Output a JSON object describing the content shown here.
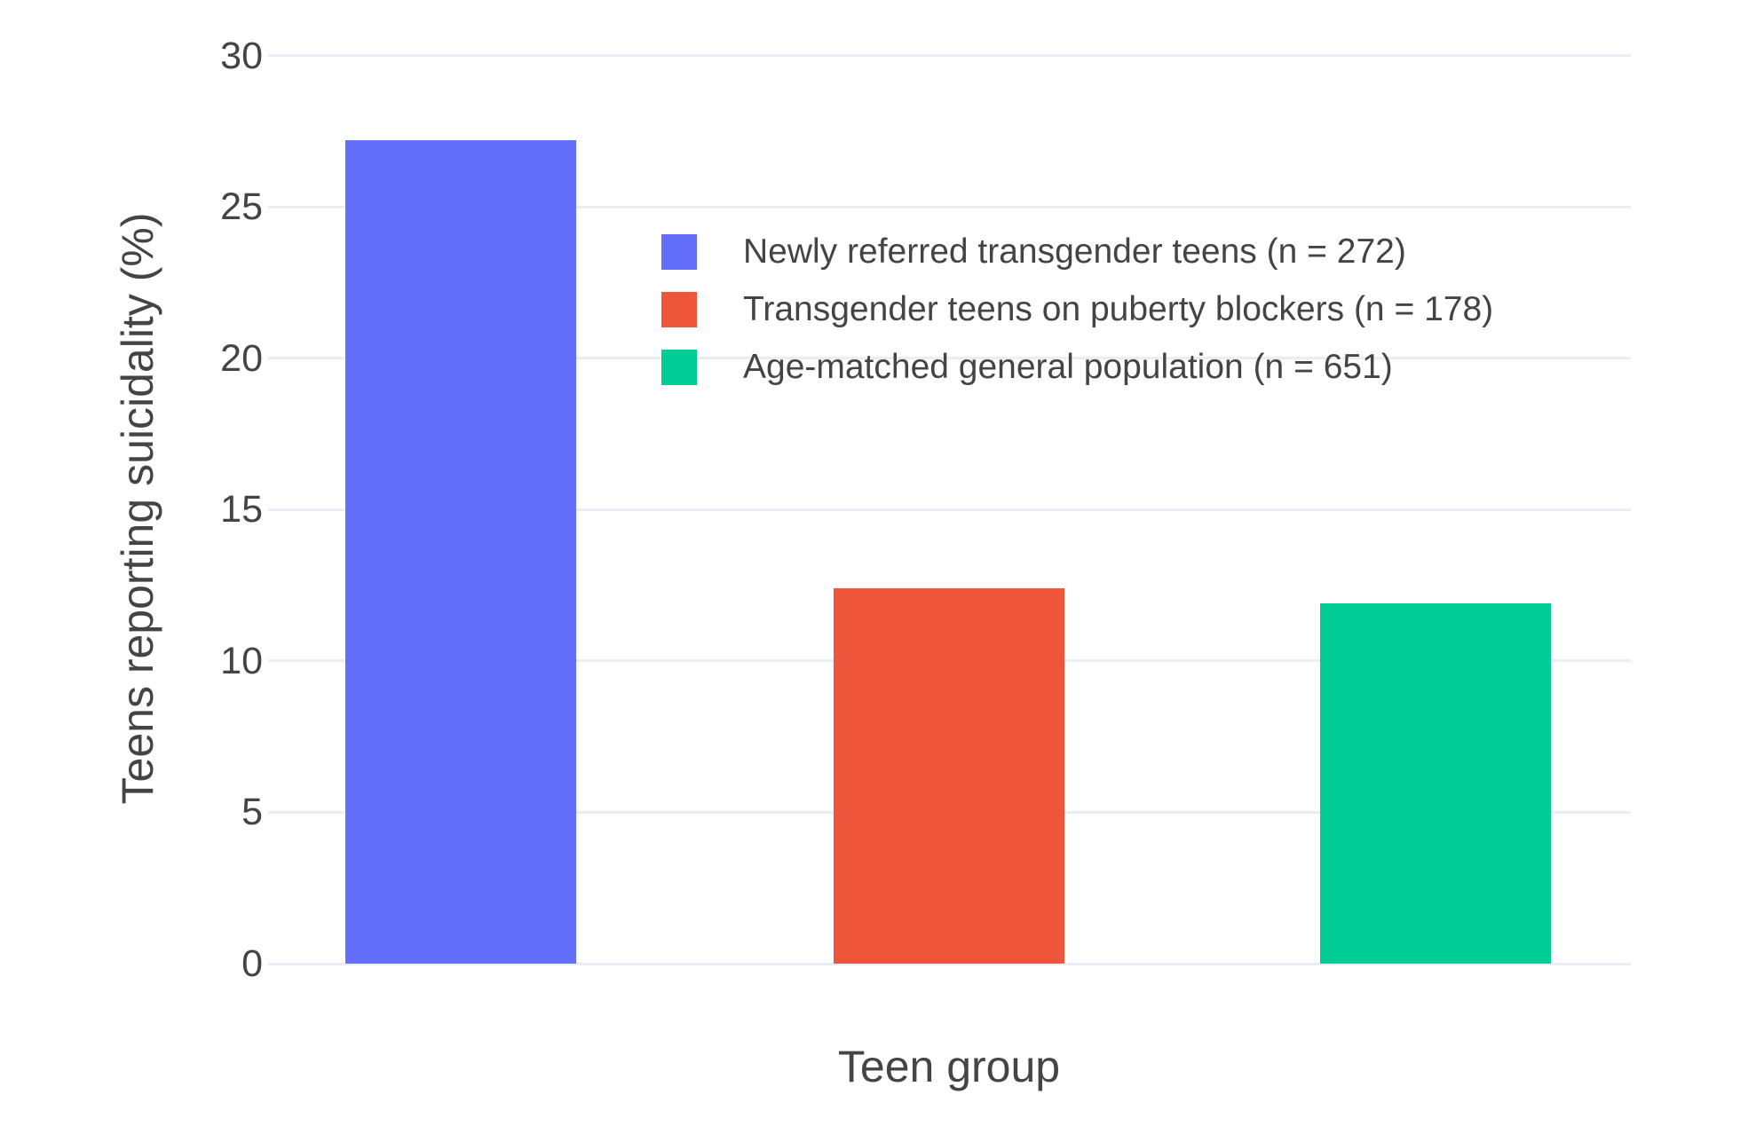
{
  "chart_data": {
    "type": "bar",
    "categories": [
      "Newly referred transgender teens (n = 272)",
      "Transgender teens on puberty blockers (n = 178)",
      "Age-matched general population (n = 651)"
    ],
    "values": [
      27.2,
      12.4,
      11.9
    ],
    "bar_colors": [
      "#636EFA",
      "#EF553B",
      "#00CC96"
    ],
    "xlabel": "Teen group",
    "ylabel": "Teens reporting suicidality (%)",
    "ylim": [
      0,
      31.1
    ],
    "yticks": [
      0,
      5,
      10,
      15,
      20,
      25,
      30
    ],
    "grid": true,
    "legend_position": "inside-top-center-left",
    "layout_hints": {
      "bar_width_frac": 0.1694,
      "bar_center_fracs": [
        0.1414,
        0.4994,
        0.857
      ]
    }
  },
  "styles": {
    "background": "#FFFFFF",
    "grid_color": "#E9EEF6",
    "text_color": "#444444"
  }
}
